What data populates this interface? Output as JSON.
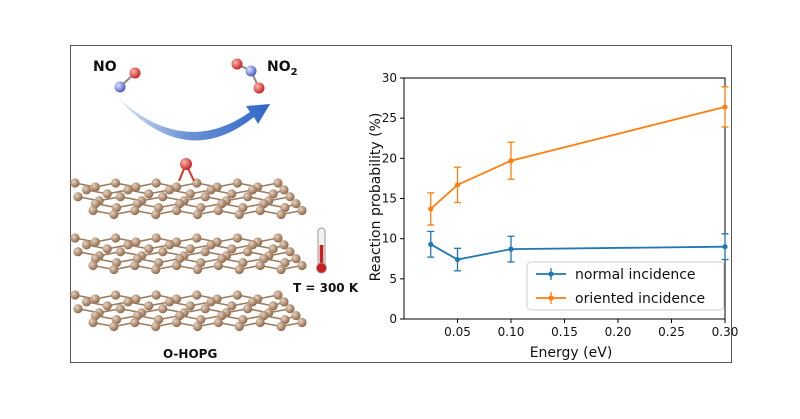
{
  "illustration": {
    "reactant_label": "NO",
    "product_label_main": "NO",
    "product_label_sub": "2",
    "temperature_label": "T = 300 K",
    "surface_label": "O-HOPG",
    "carbon_color": "#b08a6a",
    "oxygen_color": "#d9302a",
    "nitrogen_color": "#5a6fd8",
    "arrow_color": "#2f66c9"
  },
  "chart_data": {
    "type": "line",
    "xlabel": "Energy (eV)",
    "ylabel": "Reaction probability (%)",
    "xlim": [
      0.0,
      0.3
    ],
    "ylim": [
      0,
      30
    ],
    "xticks": [
      "0.05",
      "0.10",
      "0.15",
      "0.20",
      "0.25",
      "0.30"
    ],
    "yticks": [
      "0",
      "5",
      "10",
      "15",
      "20",
      "25",
      "30"
    ],
    "grid": false,
    "legend_position": "lower-right",
    "series": [
      {
        "name": "normal incidence",
        "color": "#1f77b4",
        "x": [
          0.025,
          0.05,
          0.1,
          0.3
        ],
        "y": [
          9.3,
          7.4,
          8.7,
          9.0
        ],
        "err": [
          1.6,
          1.4,
          1.6,
          1.6
        ]
      },
      {
        "name": "oriented incidence",
        "color": "#ff7f0e",
        "x": [
          0.025,
          0.05,
          0.1,
          0.3
        ],
        "y": [
          13.7,
          16.7,
          19.7,
          26.4
        ],
        "err": [
          2.0,
          2.2,
          2.3,
          2.5
        ]
      }
    ]
  }
}
